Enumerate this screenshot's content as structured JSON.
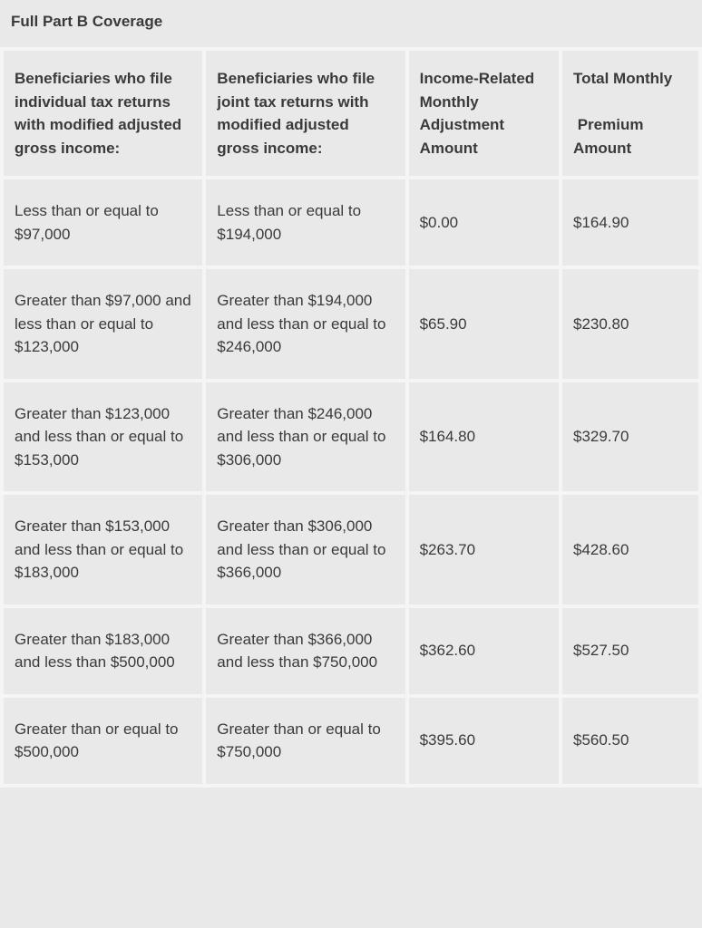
{
  "title": "Full Part B Coverage",
  "table": {
    "type": "table",
    "background_color": "#e9e9e9",
    "border_color": "#f5f5f5",
    "text_color": "#3a3a3a",
    "header_fontsize": 17,
    "cell_fontsize": 17,
    "column_widths_pct": [
      29,
      29,
      22,
      20
    ],
    "columns": [
      "Beneficiaries who file individual tax returns with modified adjusted gross income:",
      "Beneficiaries who file joint tax returns with modified adjusted gross income:",
      "Income-Related Monthly Adjustment Amount",
      "Total Monthly\n\n Premium Amount"
    ],
    "rows": [
      [
        "Less than or equal to $97,000",
        "Less than or equal to $194,000",
        "$0.00",
        "$164.90"
      ],
      [
        "Greater than $97,000 and less than or equal to $123,000",
        "Greater than $194,000 and less than or equal to $246,000",
        "$65.90",
        "$230.80"
      ],
      [
        "Greater than $123,000 and less than or equal to $153,000",
        "Greater than $246,000 and less than or equal to $306,000",
        "$164.80",
        "$329.70"
      ],
      [
        "Greater than $153,000 and less than or equal to $183,000",
        "Greater than $306,000 and less than or equal to $366,000",
        "$263.70",
        "$428.60"
      ],
      [
        "Greater than $183,000 and less than $500,000",
        "Greater than $366,000 and less than $750,000",
        "$362.60",
        "$527.50"
      ],
      [
        "Greater than or equal to $500,000",
        "Greater than or equal to $750,000",
        "$395.60",
        "$560.50"
      ]
    ]
  }
}
